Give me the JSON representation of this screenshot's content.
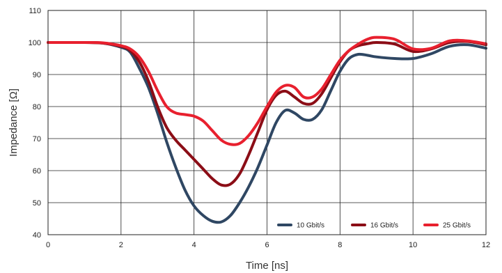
{
  "chart_data": {
    "type": "line",
    "title": "",
    "xlabel": "Time [ns]",
    "ylabel": "Impedance [Ω]",
    "xlim": [
      0,
      12
    ],
    "ylim": [
      40,
      110
    ],
    "xticks": [
      0,
      2,
      4,
      6,
      8,
      10,
      12
    ],
    "yticks": [
      40,
      50,
      60,
      70,
      80,
      90,
      100,
      110
    ],
    "grid": true,
    "legend_position": "bottom-right",
    "series": [
      {
        "name": "10 Gbit/s",
        "color": "#2f4763",
        "x": [
          0,
          0.5,
          1,
          1.5,
          2,
          2.25,
          2.5,
          2.75,
          3,
          3.25,
          3.5,
          3.75,
          4,
          4.25,
          4.5,
          4.75,
          5,
          5.25,
          5.5,
          5.75,
          6,
          6.25,
          6.5,
          6.75,
          7,
          7.25,
          7.5,
          7.75,
          8,
          8.25,
          8.5,
          8.75,
          9,
          9.5,
          10,
          10.5,
          11,
          11.5,
          12
        ],
        "y": [
          100,
          100,
          100,
          99.8,
          98.5,
          97,
          92,
          86,
          78,
          69,
          61,
          54,
          49,
          46,
          44.2,
          44,
          46,
          50,
          55,
          61,
          68,
          75,
          78.8,
          78,
          76,
          76,
          79,
          85,
          91,
          95,
          96.3,
          96,
          95.5,
          95,
          95,
          96.5,
          98.8,
          99.3,
          98.2
        ]
      },
      {
        "name": "16 Gbit/s",
        "color": "#8b0d16",
        "x": [
          0,
          0.5,
          1,
          1.5,
          2,
          2.25,
          2.5,
          2.75,
          3,
          3.25,
          3.5,
          3.75,
          4,
          4.25,
          4.5,
          4.75,
          5,
          5.25,
          5.5,
          5.75,
          6,
          6.25,
          6.5,
          6.75,
          7,
          7.25,
          7.5,
          7.75,
          8,
          8.25,
          8.5,
          8.75,
          9,
          9.5,
          10,
          10.5,
          11,
          11.5,
          12
        ],
        "y": [
          100,
          100,
          100,
          99.8,
          98.8,
          97.5,
          94,
          88,
          80,
          73.5,
          69.5,
          66.5,
          63.5,
          60.5,
          57.5,
          55.5,
          55.8,
          59,
          65,
          72,
          79,
          83.5,
          84.8,
          83,
          81,
          81,
          84,
          89,
          94,
          97.5,
          99,
          99.6,
          100,
          99.5,
          97.2,
          98,
          100,
          100.3,
          99.3
        ]
      },
      {
        "name": "25 Gbit/s",
        "color": "#e8202e",
        "x": [
          0,
          0.5,
          1,
          1.5,
          2,
          2.25,
          2.5,
          2.75,
          3,
          3.25,
          3.5,
          3.75,
          4,
          4.25,
          4.5,
          4.75,
          5,
          5.25,
          5.5,
          5.75,
          6,
          6.25,
          6.5,
          6.75,
          7,
          7.25,
          7.5,
          7.75,
          8,
          8.25,
          8.5,
          8.75,
          9,
          9.5,
          10,
          10.5,
          11,
          11.5,
          12
        ],
        "y": [
          100,
          100,
          100,
          99.9,
          99,
          98,
          95.5,
          91,
          85,
          80,
          78,
          77.5,
          77,
          75.5,
          72.5,
          69.5,
          68.2,
          68.5,
          71,
          75,
          80,
          84.5,
          86.6,
          86,
          83,
          83,
          85.5,
          90,
          94.5,
          97.5,
          99.5,
          101,
          101.6,
          101,
          98,
          98.2,
          100.5,
          100.5,
          99.6
        ]
      }
    ]
  }
}
